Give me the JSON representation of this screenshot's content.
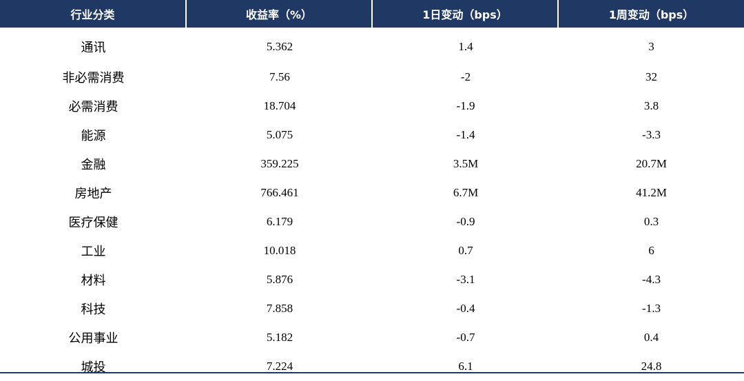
{
  "chart_data": {
    "type": "table",
    "columns": [
      "行业分类",
      "收益率（%）",
      "1日变动（bps）",
      "1周变动（bps）"
    ],
    "rows": [
      [
        "通讯",
        "5.362",
        "1.4",
        "3"
      ],
      [
        "非必需消费",
        "7.56",
        "-2",
        "32"
      ],
      [
        "必需消费",
        "18.704",
        "-1.9",
        "3.8"
      ],
      [
        "能源",
        "5.075",
        "-1.4",
        "-3.3"
      ],
      [
        "金融",
        "359.225",
        "3.5M",
        "20.7M"
      ],
      [
        "房地产",
        "766.461",
        "6.7M",
        "41.2M"
      ],
      [
        "医疗保健",
        "6.179",
        "-0.9",
        "0.3"
      ],
      [
        "工业",
        "10.018",
        "0.7",
        "6"
      ],
      [
        "材料",
        "5.876",
        "-3.1",
        "-4.3"
      ],
      [
        "科技",
        "7.858",
        "-0.4",
        "-1.3"
      ],
      [
        "公用事业",
        "5.182",
        "-0.7",
        "0.4"
      ],
      [
        "城投",
        "7.224",
        "6.1",
        "24.8"
      ]
    ]
  },
  "colors": {
    "header_bg": "#1f3864",
    "header_text": "#ffffff",
    "body_text": "#000000"
  }
}
